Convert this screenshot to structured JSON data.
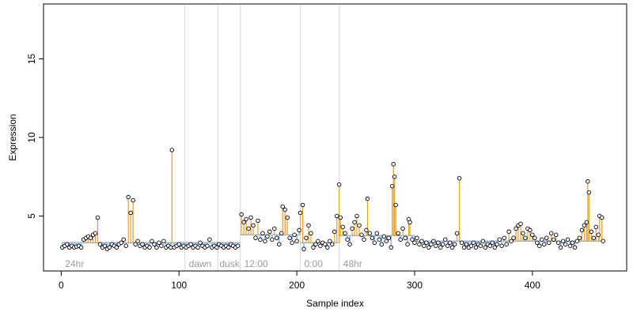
{
  "chart_data": {
    "type": "scatter",
    "title": "",
    "xlabel": "Sample index",
    "ylabel": "Expression",
    "xlim": [
      -15,
      480
    ],
    "ylim": [
      1.5,
      18.5
    ],
    "x_ticks": [
      0,
      100,
      200,
      300,
      400
    ],
    "y_ticks": [
      5,
      10,
      15
    ],
    "grid": false,
    "legend": "none",
    "colors": {
      "points_fill": "#ffffff",
      "points_stroke": "#000000",
      "baseline": "#8fb6ee",
      "spike": "#f0a020",
      "separator": "#d8d8d8",
      "group_label": "#9a9a9a"
    },
    "separators": [
      105,
      133,
      152,
      203,
      236
    ],
    "group_labels": [
      {
        "text": "24hr",
        "x": 2
      },
      {
        "text": "dawn",
        "x": 107
      },
      {
        "text": "dusk",
        "x": 133
      },
      {
        "text": "12:00",
        "x": 154
      },
      {
        "text": "0:00",
        "x": 205
      },
      {
        "text": "48hr",
        "x": 238
      }
    ],
    "baseline_segments": [
      {
        "x0": 1,
        "x1": 152,
        "y": 3.3
      },
      {
        "x0": 152,
        "x1": 203,
        "y": 3.8
      },
      {
        "x0": 203,
        "x1": 236,
        "y": 3.3
      },
      {
        "x0": 236,
        "x1": 300,
        "y": 3.75
      },
      {
        "x0": 300,
        "x1": 460,
        "y": 3.4
      }
    ],
    "points": [
      [
        1,
        3.0
      ],
      [
        3,
        3.1
      ],
      [
        5,
        3.2
      ],
      [
        7,
        3.0
      ],
      [
        9,
        3.1
      ],
      [
        11,
        3.0
      ],
      [
        13,
        3.05
      ],
      [
        15,
        3.1
      ],
      [
        17,
        3.0
      ],
      [
        19,
        3.5
      ],
      [
        21,
        3.6
      ],
      [
        23,
        3.7
      ],
      [
        25,
        3.6
      ],
      [
        27,
        3.8
      ],
      [
        29,
        3.9
      ],
      [
        31,
        4.9
      ],
      [
        33,
        3.2
      ],
      [
        35,
        3.0
      ],
      [
        37,
        3.1
      ],
      [
        39,
        2.9
      ],
      [
        41,
        3.0
      ],
      [
        43,
        3.2
      ],
      [
        45,
        3.1
      ],
      [
        47,
        3.0
      ],
      [
        49,
        3.2
      ],
      [
        51,
        3.3
      ],
      [
        53,
        3.5
      ],
      [
        55,
        3.1
      ],
      [
        57,
        6.2
      ],
      [
        59,
        5.2
      ],
      [
        61,
        6.0
      ],
      [
        63,
        3.2
      ],
      [
        65,
        3.4
      ],
      [
        67,
        3.1
      ],
      [
        69,
        3.2
      ],
      [
        71,
        3.0
      ],
      [
        73,
        3.1
      ],
      [
        75,
        3.0
      ],
      [
        77,
        3.4
      ],
      [
        79,
        3.2
      ],
      [
        81,
        3.0
      ],
      [
        83,
        3.3
      ],
      [
        85,
        3.1
      ],
      [
        87,
        3.4
      ],
      [
        89,
        3.0
      ],
      [
        91,
        3.1
      ],
      [
        93,
        3.0
      ],
      [
        94,
        9.2
      ],
      [
        96,
        3.0
      ],
      [
        98,
        3.1
      ],
      [
        100,
        3.2
      ],
      [
        102,
        3.0
      ],
      [
        104,
        3.1
      ],
      [
        106,
        3.0
      ],
      [
        108,
        3.1
      ],
      [
        110,
        3.2
      ],
      [
        112,
        3.0
      ],
      [
        114,
        3.1
      ],
      [
        116,
        3.0
      ],
      [
        118,
        3.3
      ],
      [
        120,
        3.1
      ],
      [
        122,
        3.0
      ],
      [
        124,
        3.1
      ],
      [
        126,
        3.5
      ],
      [
        128,
        3.0
      ],
      [
        130,
        3.1
      ],
      [
        132,
        3.0
      ],
      [
        134,
        3.2
      ],
      [
        136,
        3.1
      ],
      [
        138,
        3.0
      ],
      [
        140,
        3.1
      ],
      [
        142,
        3.0
      ],
      [
        144,
        3.2
      ],
      [
        146,
        3.1
      ],
      [
        148,
        3.0
      ],
      [
        150,
        3.1
      ],
      [
        153,
        5.1
      ],
      [
        155,
        4.6
      ],
      [
        157,
        4.8
      ],
      [
        159,
        4.2
      ],
      [
        161,
        4.9
      ],
      [
        163,
        4.4
      ],
      [
        165,
        3.6
      ],
      [
        167,
        4.7
      ],
      [
        169,
        3.5
      ],
      [
        171,
        3.9
      ],
      [
        173,
        3.4
      ],
      [
        175,
        3.7
      ],
      [
        177,
        4.0
      ],
      [
        179,
        3.5
      ],
      [
        181,
        4.2
      ],
      [
        183,
        3.6
      ],
      [
        185,
        3.2
      ],
      [
        187,
        3.9
      ],
      [
        188,
        5.6
      ],
      [
        190,
        5.4
      ],
      [
        192,
        4.9
      ],
      [
        194,
        3.6
      ],
      [
        196,
        3.3
      ],
      [
        198,
        3.8
      ],
      [
        200,
        3.4
      ],
      [
        202,
        4.1
      ],
      [
        203,
        5.2
      ],
      [
        205,
        5.7
      ],
      [
        206,
        2.9
      ],
      [
        208,
        3.6
      ],
      [
        210,
        4.4
      ],
      [
        212,
        3.9
      ],
      [
        214,
        3.0
      ],
      [
        216,
        3.2
      ],
      [
        218,
        3.4
      ],
      [
        220,
        3.1
      ],
      [
        222,
        3.3
      ],
      [
        224,
        3.2
      ],
      [
        226,
        3.0
      ],
      [
        228,
        3.4
      ],
      [
        230,
        3.2
      ],
      [
        232,
        4.0
      ],
      [
        234,
        5.0
      ],
      [
        236,
        7.0
      ],
      [
        237,
        4.9
      ],
      [
        239,
        4.3
      ],
      [
        241,
        3.9
      ],
      [
        243,
        3.5
      ],
      [
        245,
        3.2
      ],
      [
        247,
        4.2
      ],
      [
        249,
        4.6
      ],
      [
        251,
        5.0
      ],
      [
        253,
        4.4
      ],
      [
        255,
        3.8
      ],
      [
        257,
        3.5
      ],
      [
        259,
        4.1
      ],
      [
        260,
        6.1
      ],
      [
        262,
        3.9
      ],
      [
        264,
        3.6
      ],
      [
        266,
        3.3
      ],
      [
        268,
        3.9
      ],
      [
        270,
        3.5
      ],
      [
        272,
        3.2
      ],
      [
        274,
        3.7
      ],
      [
        276,
        3.4
      ],
      [
        278,
        3.6
      ],
      [
        280,
        3.0
      ],
      [
        281,
        6.9
      ],
      [
        282,
        8.3
      ],
      [
        283,
        7.5
      ],
      [
        284,
        5.7
      ],
      [
        286,
        3.9
      ],
      [
        288,
        3.5
      ],
      [
        290,
        4.2
      ],
      [
        292,
        3.6
      ],
      [
        294,
        3.2
      ],
      [
        295,
        4.8
      ],
      [
        296,
        4.6
      ],
      [
        298,
        3.5
      ],
      [
        300,
        3.3
      ],
      [
        302,
        3.6
      ],
      [
        304,
        3.2
      ],
      [
        306,
        3.4
      ],
      [
        308,
        3.1
      ],
      [
        310,
        3.3
      ],
      [
        312,
        3.0
      ],
      [
        314,
        3.2
      ],
      [
        316,
        3.4
      ],
      [
        318,
        3.1
      ],
      [
        320,
        3.3
      ],
      [
        322,
        3.0
      ],
      [
        324,
        3.2
      ],
      [
        326,
        3.5
      ],
      [
        328,
        3.1
      ],
      [
        330,
        3.3
      ],
      [
        332,
        3.0
      ],
      [
        334,
        3.2
      ],
      [
        336,
        3.9
      ],
      [
        338,
        7.4
      ],
      [
        340,
        3.3
      ],
      [
        342,
        3.0
      ],
      [
        344,
        3.2
      ],
      [
        346,
        3.0
      ],
      [
        348,
        3.1
      ],
      [
        350,
        3.3
      ],
      [
        352,
        3.0
      ],
      [
        354,
        3.2
      ],
      [
        356,
        3.1
      ],
      [
        358,
        3.4
      ],
      [
        360,
        3.0
      ],
      [
        362,
        3.2
      ],
      [
        364,
        3.1
      ],
      [
        366,
        3.3
      ],
      [
        368,
        3.0
      ],
      [
        370,
        3.2
      ],
      [
        372,
        3.5
      ],
      [
        374,
        3.1
      ],
      [
        376,
        3.6
      ],
      [
        378,
        3.2
      ],
      [
        380,
        4.0
      ],
      [
        382,
        3.4
      ],
      [
        384,
        3.6
      ],
      [
        386,
        4.2
      ],
      [
        388,
        4.4
      ],
      [
        390,
        4.5
      ],
      [
        392,
        3.9
      ],
      [
        394,
        3.6
      ],
      [
        396,
        4.2
      ],
      [
        398,
        4.1
      ],
      [
        400,
        3.8
      ],
      [
        402,
        3.6
      ],
      [
        404,
        3.3
      ],
      [
        406,
        3.1
      ],
      [
        408,
        3.5
      ],
      [
        410,
        3.2
      ],
      [
        412,
        3.6
      ],
      [
        414,
        3.3
      ],
      [
        416,
        3.9
      ],
      [
        418,
        3.5
      ],
      [
        420,
        3.8
      ],
      [
        422,
        3.3
      ],
      [
        424,
        3.0
      ],
      [
        426,
        3.4
      ],
      [
        428,
        3.2
      ],
      [
        430,
        3.5
      ],
      [
        432,
        3.1
      ],
      [
        434,
        3.3
      ],
      [
        436,
        3.0
      ],
      [
        438,
        3.4
      ],
      [
        440,
        3.6
      ],
      [
        442,
        4.1
      ],
      [
        444,
        4.4
      ],
      [
        446,
        4.6
      ],
      [
        447,
        7.2
      ],
      [
        448,
        6.5
      ],
      [
        450,
        4.0
      ],
      [
        452,
        3.6
      ],
      [
        454,
        4.3
      ],
      [
        456,
        3.8
      ],
      [
        457,
        5.0
      ],
      [
        459,
        4.9
      ],
      [
        460,
        3.4
      ]
    ]
  }
}
